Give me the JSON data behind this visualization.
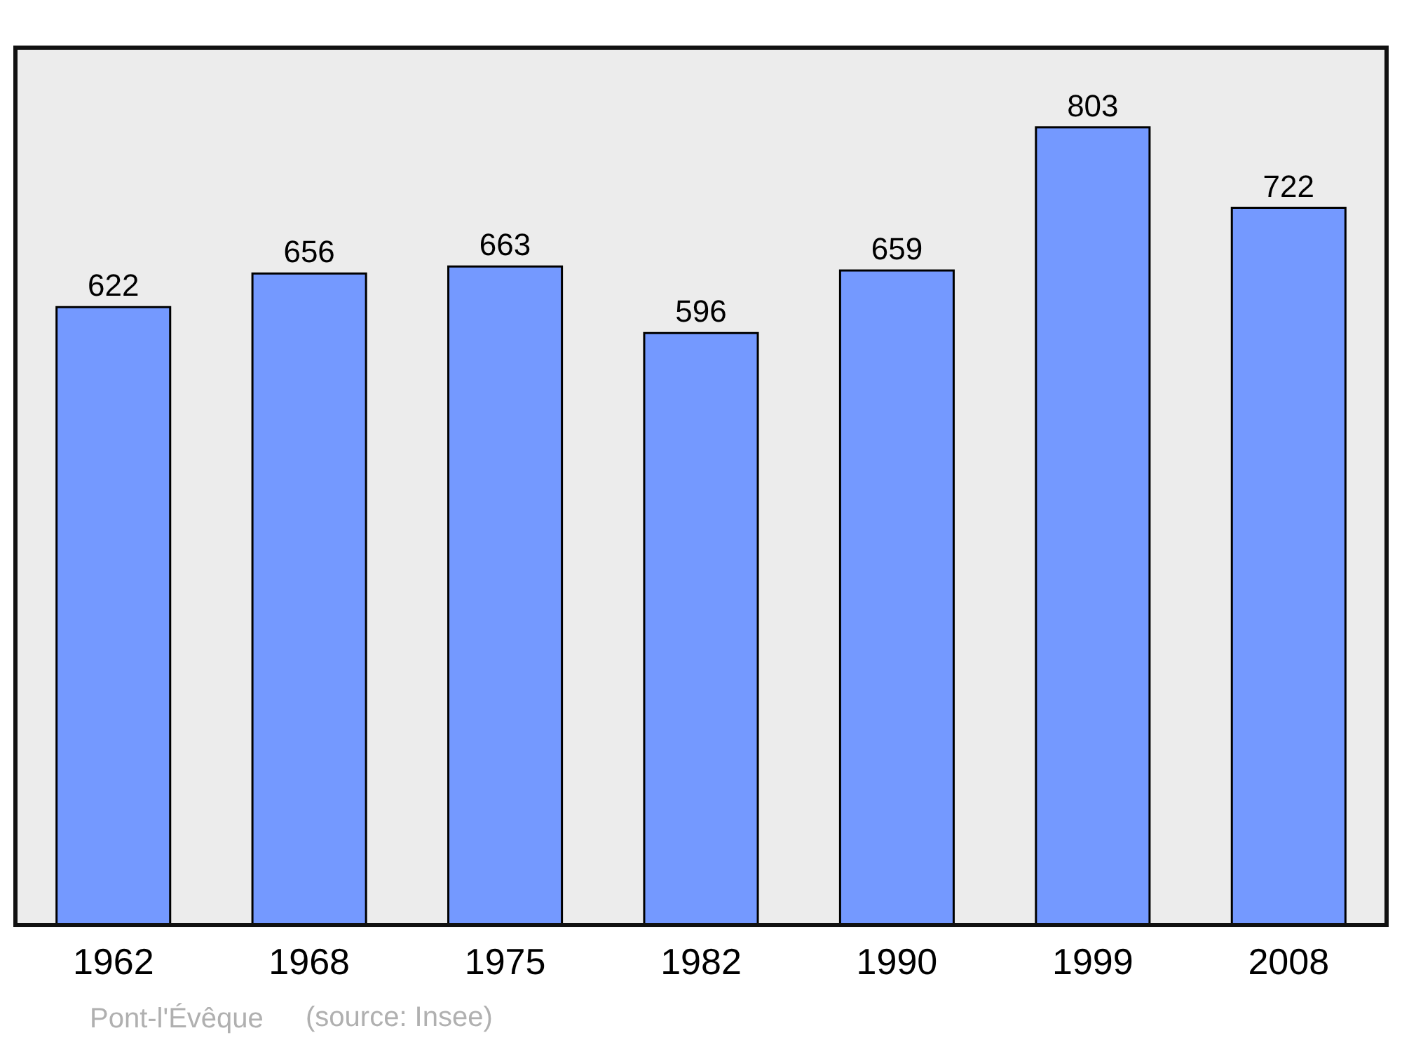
{
  "chart_data": {
    "type": "bar",
    "categories": [
      "1962",
      "1968",
      "1975",
      "1982",
      "1990",
      "1999",
      "2008"
    ],
    "values": [
      622,
      656,
      663,
      596,
      659,
      803,
      722
    ],
    "color": "#7499ff",
    "data_labels": true,
    "annotations": [
      "Pont-l'Évêque",
      "(source: Insee)"
    ]
  }
}
